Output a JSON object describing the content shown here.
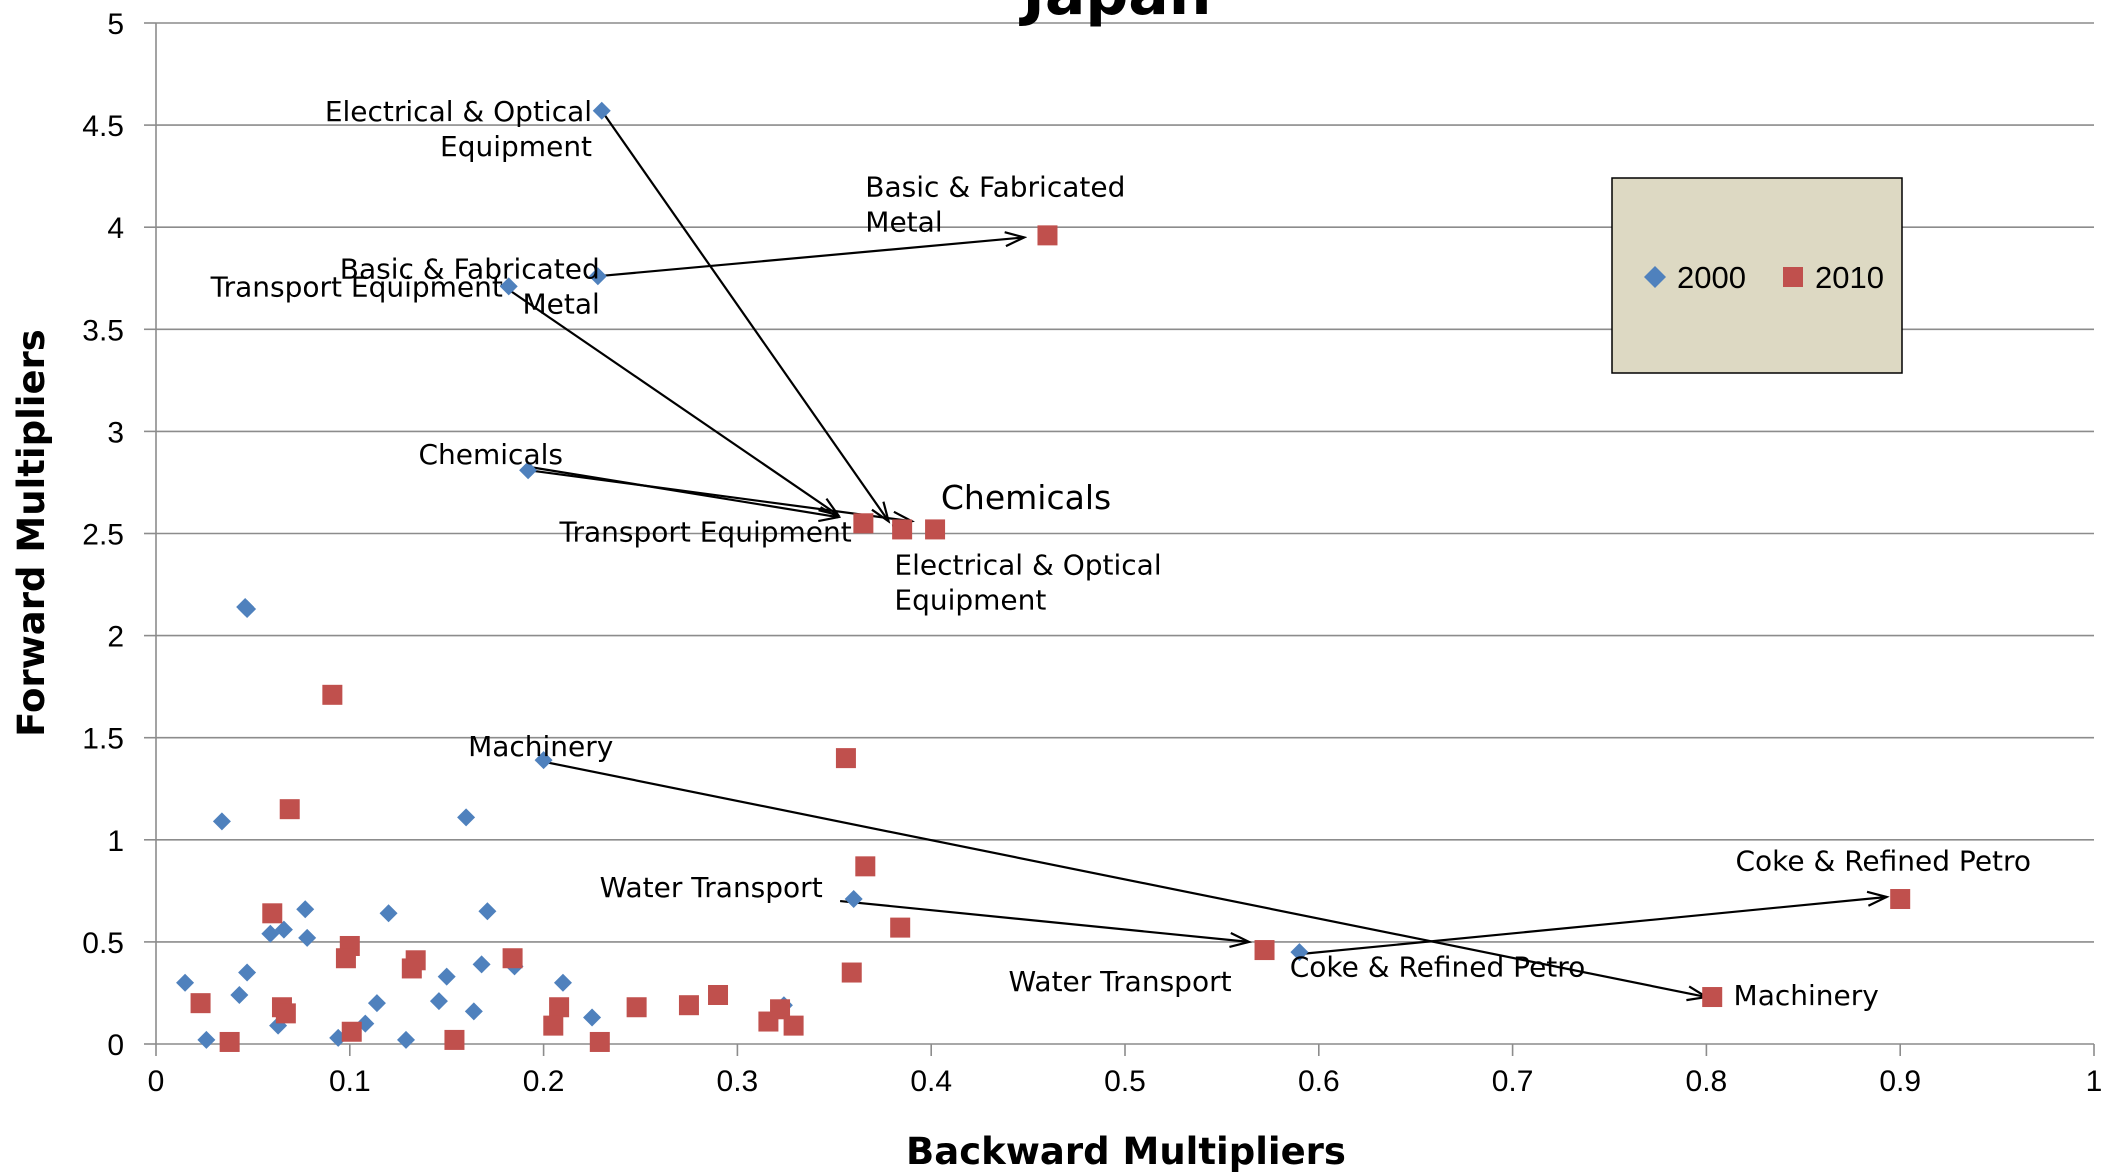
{
  "chart_data": {
    "type": "scatter",
    "title": "Japan",
    "xlabel": "Backward Multipliers",
    "ylabel": "Forward Multipliers",
    "xlim": [
      0,
      1
    ],
    "ylim": [
      0,
      5
    ],
    "x_ticks": [
      "0",
      "0.1",
      "0.2",
      "0.3",
      "0.4",
      "0.5",
      "0.6",
      "0.7",
      "0.8",
      "0.9",
      "1"
    ],
    "y_ticks": [
      "0",
      "0.5",
      "1",
      "1.5",
      "2",
      "2.5",
      "3",
      "3.5",
      "4",
      "4.5",
      "5"
    ],
    "grid": true,
    "legend_position": "top-right",
    "series": [
      {
        "name": "2000",
        "color": "#4f81bd",
        "marker": "diamond",
        "points": [
          [
            0.23,
            4.57
          ],
          [
            0.228,
            3.76
          ],
          [
            0.182,
            3.71
          ],
          [
            0.192,
            2.81
          ],
          [
            0.046,
            2.14
          ],
          [
            0.047,
            2.13
          ],
          [
            0.2,
            1.39
          ],
          [
            0.16,
            1.11
          ],
          [
            0.034,
            1.09
          ],
          [
            0.36,
            0.71
          ],
          [
            0.59,
            0.45
          ],
          [
            0.077,
            0.66
          ],
          [
            0.171,
            0.65
          ],
          [
            0.12,
            0.64
          ],
          [
            0.066,
            0.56
          ],
          [
            0.059,
            0.54
          ],
          [
            0.078,
            0.52
          ],
          [
            0.168,
            0.39
          ],
          [
            0.185,
            0.38
          ],
          [
            0.047,
            0.35
          ],
          [
            0.15,
            0.33
          ],
          [
            0.21,
            0.3
          ],
          [
            0.015,
            0.3
          ],
          [
            0.043,
            0.24
          ],
          [
            0.146,
            0.21
          ],
          [
            0.114,
            0.2
          ],
          [
            0.324,
            0.19
          ],
          [
            0.164,
            0.16
          ],
          [
            0.225,
            0.13
          ],
          [
            0.108,
            0.1
          ],
          [
            0.063,
            0.09
          ],
          [
            0.094,
            0.03
          ],
          [
            0.026,
            0.02
          ],
          [
            0.129,
            0.02
          ]
        ]
      },
      {
        "name": "2010",
        "color": "#c0504d",
        "marker": "square",
        "points": [
          [
            0.46,
            3.96
          ],
          [
            0.365,
            2.55
          ],
          [
            0.385,
            2.52
          ],
          [
            0.402,
            2.52
          ],
          [
            0.091,
            1.71
          ],
          [
            0.356,
            1.4
          ],
          [
            0.069,
            1.15
          ],
          [
            0.366,
            0.87
          ],
          [
            0.9,
            0.71
          ],
          [
            0.06,
            0.64
          ],
          [
            0.384,
            0.57
          ],
          [
            0.1,
            0.48
          ],
          [
            0.572,
            0.46
          ],
          [
            0.098,
            0.42
          ],
          [
            0.184,
            0.42
          ],
          [
            0.134,
            0.41
          ],
          [
            0.132,
            0.37
          ],
          [
            0.359,
            0.35
          ],
          [
            0.29,
            0.24
          ],
          [
            0.803,
            0.23
          ],
          [
            0.023,
            0.2
          ],
          [
            0.065,
            0.18
          ],
          [
            0.275,
            0.19
          ],
          [
            0.248,
            0.18
          ],
          [
            0.208,
            0.18
          ],
          [
            0.322,
            0.17
          ],
          [
            0.067,
            0.15
          ],
          [
            0.316,
            0.11
          ],
          [
            0.205,
            0.09
          ],
          [
            0.329,
            0.09
          ],
          [
            0.101,
            0.06
          ],
          [
            0.154,
            0.02
          ],
          [
            0.038,
            0.01
          ],
          [
            0.229,
            0.01
          ]
        ]
      }
    ],
    "arrows": [
      {
        "from": [
          0.23,
          4.57
        ],
        "to": [
          0.378,
          2.56
        ]
      },
      {
        "from": [
          0.228,
          3.76
        ],
        "to": [
          0.448,
          3.95
        ]
      },
      {
        "from": [
          0.178,
          3.72
        ],
        "to": [
          0.352,
          2.59
        ]
      },
      {
        "from": [
          0.19,
          2.83
        ],
        "to": [
          0.352,
          2.58
        ]
      },
      {
        "from": [
          0.192,
          2.81
        ],
        "to": [
          0.39,
          2.56
        ]
      },
      {
        "from": [
          0.196,
          1.39
        ],
        "to": [
          0.8,
          0.23
        ]
      },
      {
        "from": [
          0.353,
          0.7
        ],
        "to": [
          0.564,
          0.5
        ]
      },
      {
        "from": [
          0.59,
          0.44
        ],
        "to": [
          0.893,
          0.72
        ]
      }
    ],
    "annotations": [
      {
        "lines": [
          "Electrical  & Optical",
          "Equipment"
        ],
        "at": [
          0.225,
          4.52
        ],
        "anchor": "end"
      },
      {
        "lines": [
          "Basic & Fabricated",
          "Metal"
        ],
        "at": [
          0.229,
          3.75
        ],
        "anchor": "end"
      },
      {
        "lines": [
          "Transport Equipment"
        ],
        "at": [
          0.179,
          3.66
        ],
        "anchor": "end"
      },
      {
        "lines": [
          "Chemicals"
        ],
        "at": [
          0.21,
          2.84
        ],
        "anchor": "end"
      },
      {
        "lines": [
          "Machinery"
        ],
        "at": [
          0.236,
          1.41
        ],
        "anchor": "end"
      },
      {
        "lines": [
          "Water Transport"
        ],
        "at": [
          0.344,
          0.72
        ],
        "anchor": "end"
      },
      {
        "lines": [
          "Basic & Fabricated",
          "Metal"
        ],
        "at": [
          0.366,
          4.15
        ],
        "anchor": "start"
      },
      {
        "lines": [
          "Chemicals"
        ],
        "at": [
          0.405,
          2.62
        ],
        "anchor": "start",
        "big": true
      },
      {
        "lines": [
          "Transport Equipment"
        ],
        "at": [
          0.359,
          2.46
        ],
        "anchor": "end"
      },
      {
        "lines": [
          "Electrical  & Optical",
          "Equipment"
        ],
        "at": [
          0.381,
          2.3
        ],
        "anchor": "start"
      },
      {
        "lines": [
          "Coke & Refined Petro"
        ],
        "at": [
          0.815,
          0.85
        ],
        "anchor": "start"
      },
      {
        "lines": [
          "Water Transport"
        ],
        "at": [
          0.555,
          0.26
        ],
        "anchor": "end"
      },
      {
        "lines": [
          "Coke & Refined Petro"
        ],
        "at": [
          0.585,
          0.33
        ],
        "anchor": "start"
      },
      {
        "lines": [
          "Machinery"
        ],
        "at": [
          0.814,
          0.19
        ],
        "anchor": "start"
      }
    ]
  }
}
